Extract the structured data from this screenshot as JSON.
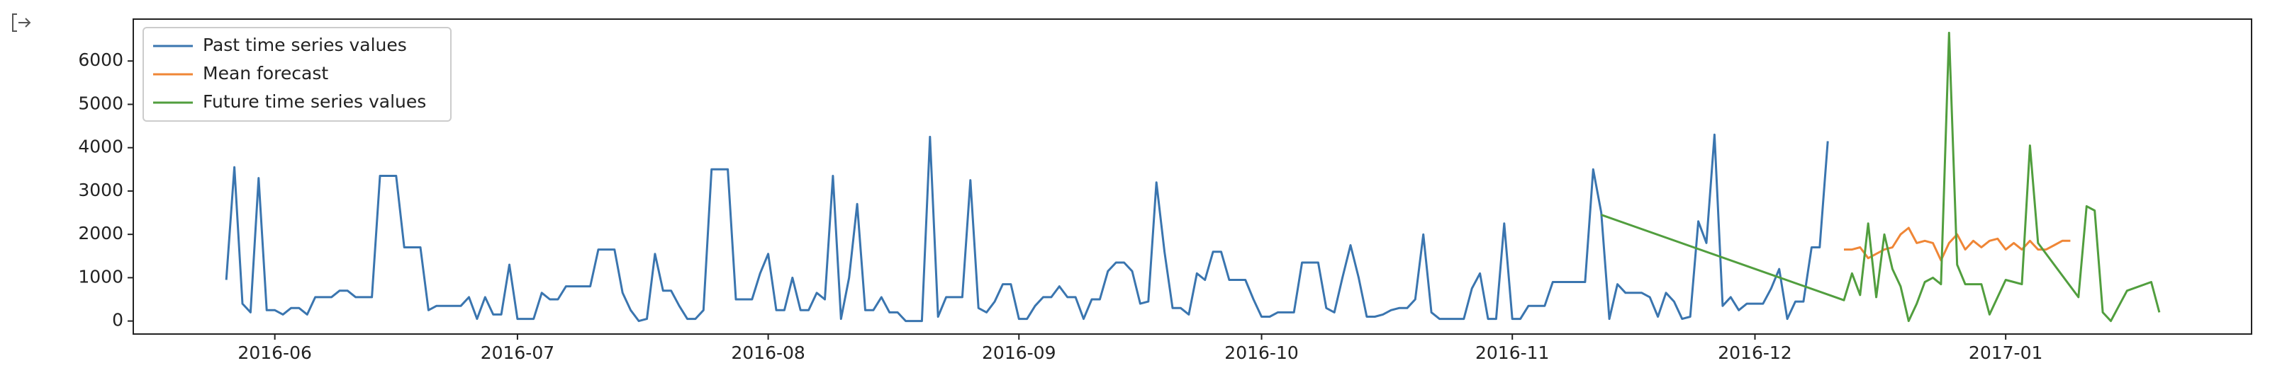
{
  "chart_data": {
    "type": "line",
    "xlim": [
      -17.5,
      244.4
    ],
    "xticks": [
      {
        "value": 0,
        "label": "2016-06"
      },
      {
        "value": 30,
        "label": "2016-07"
      },
      {
        "value": 61,
        "label": "2016-08"
      },
      {
        "value": 92,
        "label": "2016-09"
      },
      {
        "value": 122,
        "label": "2016-10"
      },
      {
        "value": 153,
        "label": "2016-11"
      },
      {
        "value": 183,
        "label": "2016-12"
      },
      {
        "value": 214,
        "label": "2017-01"
      }
    ],
    "ylim": [
      -300,
      6967
    ],
    "yticks": [
      0,
      1000,
      2000,
      3000,
      4000,
      5000,
      6000
    ],
    "legend": "upper left",
    "series": [
      {
        "name": "Past time series values",
        "color": "#3a75af",
        "x": [
          -6,
          -5,
          -4,
          -3,
          -2,
          -1,
          0,
          1,
          2,
          3,
          4,
          5,
          6,
          7,
          8,
          9,
          10,
          11,
          12,
          13,
          14,
          15,
          16,
          17,
          18,
          19,
          20,
          21,
          22,
          23,
          24,
          25,
          26,
          27,
          28,
          29,
          30,
          31,
          32,
          33,
          34,
          35,
          36,
          37,
          38,
          39,
          40,
          41,
          42,
          43,
          44,
          45,
          46,
          47,
          48,
          49,
          50,
          51,
          52,
          53,
          54,
          55,
          56,
          57,
          58,
          59,
          60,
          61,
          62,
          63,
          64,
          65,
          66,
          67,
          68,
          69,
          70,
          71,
          72,
          73,
          74,
          75,
          76,
          77,
          78,
          79,
          80,
          81,
          82,
          83,
          84,
          85,
          86,
          87,
          88,
          89,
          90,
          91,
          92,
          93,
          94,
          95,
          96,
          97,
          98,
          99,
          100,
          101,
          102,
          103,
          104,
          105,
          106,
          107,
          108,
          109,
          110,
          111,
          112,
          113,
          114,
          115,
          116,
          117,
          118,
          119,
          120,
          121,
          122,
          123,
          124,
          125,
          126,
          127,
          128,
          129,
          130,
          131,
          132,
          133,
          134,
          135,
          136,
          137,
          138,
          139,
          140,
          141,
          142,
          143,
          144,
          145,
          146,
          147,
          148,
          149,
          150,
          151,
          152,
          153,
          154,
          155,
          156,
          157,
          158,
          159,
          160,
          161,
          162,
          163,
          164,
          165,
          166,
          167,
          168,
          169,
          170,
          171,
          172,
          173,
          174,
          175,
          176,
          177,
          178,
          179,
          180,
          181,
          182,
          183,
          184,
          185,
          186,
          187,
          188,
          189,
          190,
          191,
          192
        ],
        "values": [
          950,
          3550,
          400,
          200,
          3300,
          250,
          250,
          150,
          300,
          300,
          150,
          550,
          550,
          550,
          700,
          700,
          550,
          550,
          550,
          3350,
          3350,
          3350,
          1700,
          1700,
          1700,
          250,
          350,
          350,
          350,
          350,
          550,
          50,
          550,
          150,
          150,
          1300,
          50,
          50,
          50,
          650,
          500,
          500,
          800,
          800,
          800,
          800,
          1650,
          1650,
          1650,
          650,
          250,
          0,
          50,
          1550,
          700,
          700,
          350,
          50,
          50,
          250,
          3500,
          3500,
          3500,
          500,
          500,
          500,
          1100,
          1550,
          250,
          250,
          1000,
          250,
          250,
          650,
          500,
          3350,
          50,
          1000,
          2700,
          250,
          250,
          550,
          200,
          200,
          0,
          0,
          0,
          4250,
          100,
          550,
          550,
          550,
          3250,
          300,
          200,
          450,
          850,
          850,
          50,
          50,
          350,
          550,
          550,
          800,
          550,
          550,
          50,
          500,
          500,
          1150,
          1350,
          1350,
          1150,
          400,
          450,
          3200,
          1600,
          300,
          300,
          150,
          1100,
          950,
          1600,
          1600,
          950,
          950,
          950,
          500,
          100,
          100,
          200,
          200,
          200,
          1350,
          1350,
          1350,
          300,
          200,
          1000,
          1750,
          1000,
          100,
          100,
          150,
          250,
          300,
          300,
          500,
          2000,
          200,
          50,
          50,
          50,
          50,
          750,
          1100,
          50,
          50,
          2250,
          50,
          50,
          350,
          350,
          350,
          900,
          900,
          900,
          900,
          900,
          3500,
          2500,
          50,
          850,
          650,
          650,
          650,
          550,
          100,
          650,
          450,
          50,
          100,
          2300,
          1800,
          4300,
          350,
          550,
          250,
          400,
          400,
          400,
          750,
          1200,
          50,
          450,
          450,
          1700,
          1700,
          4150
        ]
      },
      {
        "name": "Mean forecast",
        "color": "#ef8636",
        "x": [
          194,
          195,
          196,
          197,
          198,
          199,
          200,
          201,
          202,
          203,
          204,
          205,
          206,
          207,
          208,
          209,
          210,
          211,
          212,
          213,
          214,
          215,
          216,
          217,
          218,
          219,
          220,
          221,
          222
        ],
        "values": [
          1650,
          1650,
          1700,
          1450,
          1550,
          1650,
          1700,
          2000,
          2150,
          1800,
          1850,
          1800,
          1400,
          1800,
          2000,
          1650,
          1850,
          1700,
          1850,
          1900,
          1650,
          1800,
          1650,
          1850,
          1650,
          1650,
          1750,
          1850,
          1850
        ]
      },
      {
        "name": "Future time series values",
        "color": "#519e3e",
        "x": [
          164,
          194,
          195,
          196,
          197,
          198,
          199,
          200,
          201,
          202,
          203,
          204,
          205,
          206,
          207,
          208,
          209,
          210,
          211,
          212,
          213,
          214,
          215,
          216,
          217,
          218,
          223,
          224,
          225,
          226,
          227,
          229,
          232,
          233
        ],
        "values": [
          2450,
          480,
          1100,
          600,
          2250,
          550,
          2000,
          1200,
          800,
          0,
          400,
          900,
          1000,
          850,
          6650,
          1300,
          850,
          850,
          850,
          150,
          550,
          950,
          900,
          850,
          4050,
          1800,
          550,
          2650,
          2550,
          200,
          0,
          700,
          900,
          200
        ]
      }
    ]
  }
}
